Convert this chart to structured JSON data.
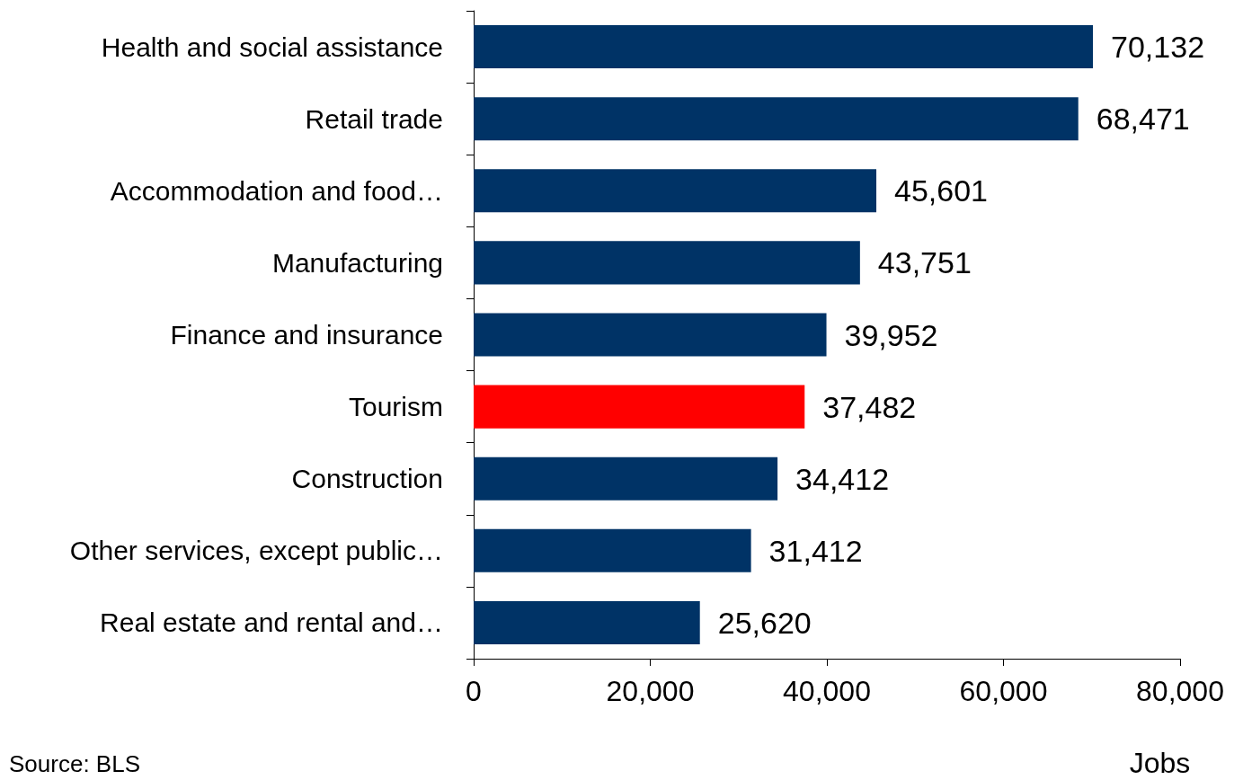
{
  "chart_data": {
    "type": "bar",
    "orientation": "horizontal",
    "categories": [
      "Health and social assistance",
      "Retail trade",
      "Accommodation and food…",
      "Manufacturing",
      "Finance and insurance",
      "Tourism",
      "Construction",
      "Other services, except public…",
      "Real estate and rental and…"
    ],
    "values": [
      70132,
      68471,
      45601,
      43751,
      39952,
      37482,
      34412,
      31412,
      25620
    ],
    "colors": [
      "#003366",
      "#003366",
      "#003366",
      "#003366",
      "#003366",
      "#ff0000",
      "#003366",
      "#003366",
      "#003366"
    ],
    "value_labels": [
      "70,132",
      "68,471",
      "45,601",
      "43,751",
      "39,952",
      "37,482",
      "34,412",
      "31,412",
      "25,620"
    ],
    "xlim": [
      0,
      80000
    ],
    "xticks": [
      0,
      {
        "value": 20000,
        "label": "20,000"
      },
      {
        "value": 40000,
        "label": "40,000"
      },
      {
        "value": 60000,
        "label": "60,000"
      },
      {
        "value": 80000,
        "label": "80,000"
      }
    ],
    "xlabel": "Jobs",
    "grid": false,
    "annotations": [
      "Source: BLS"
    ]
  }
}
